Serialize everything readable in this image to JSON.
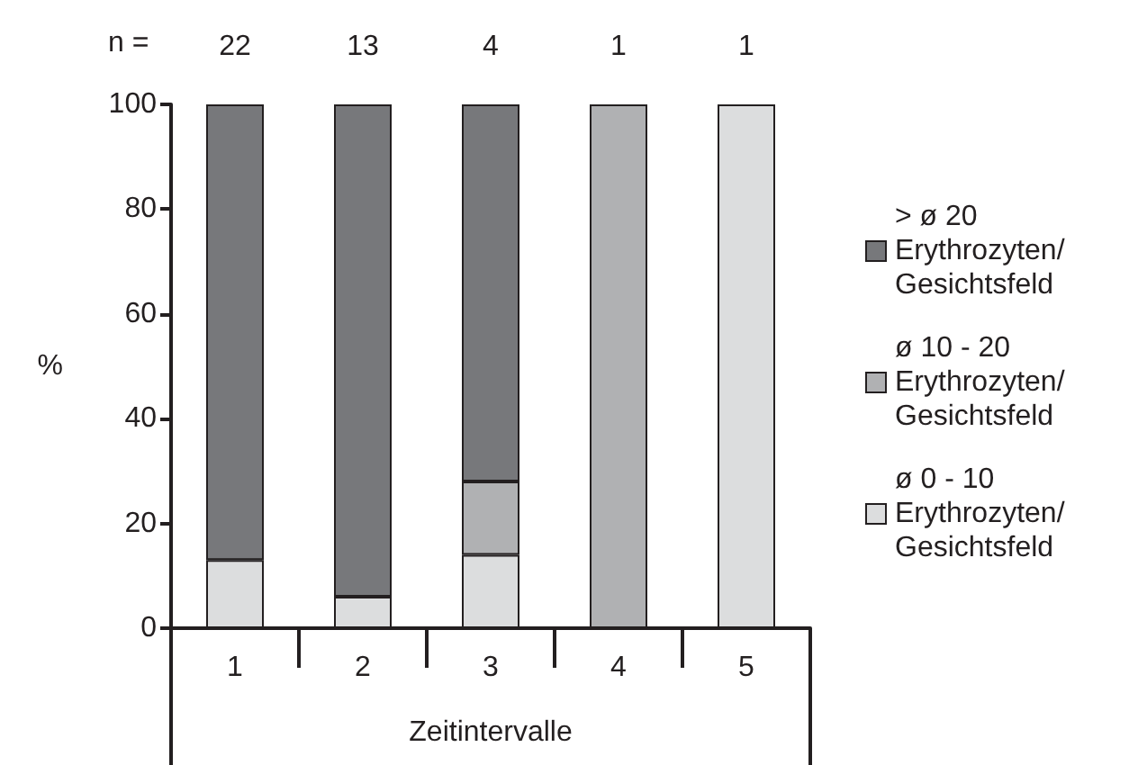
{
  "chart_data": {
    "type": "bar",
    "stacked": true,
    "xlabel": "Zeitintervalle",
    "ylabel": "%",
    "categories": [
      "1",
      "2",
      "3",
      "4",
      "5"
    ],
    "series": [
      {
        "name": "ø 0 - 10 Erythrozyten/ Gesichtsfeld",
        "color": "#dcddde",
        "values": [
          13,
          6,
          14,
          null,
          100
        ]
      },
      {
        "name": "ø 10 - 20 Erythrozyten/ Gesichtsfeld",
        "color": "#b0b1b3",
        "values": [
          null,
          null,
          14,
          100,
          null
        ]
      },
      {
        "name": "> ø 20 Erythrozyten/ Gesichtsfeld",
        "color": "#77787b",
        "values": [
          87,
          94,
          72,
          null,
          null
        ]
      }
    ],
    "ylim": [
      0,
      100
    ],
    "yticks": [
      0,
      20,
      40,
      60,
      80,
      100
    ],
    "grid": false,
    "legend": "right",
    "annotations": [
      "n =",
      {
        "text": "22",
        "x": "1",
        "y": 100
      },
      {
        "text": "13",
        "x": "2",
        "y": 100
      },
      {
        "text": "4",
        "x": "3",
        "y": 100
      },
      {
        "text": "1",
        "x": "4",
        "y": 100
      },
      {
        "text": "1",
        "x": "5",
        "y": 100
      }
    ]
  }
}
